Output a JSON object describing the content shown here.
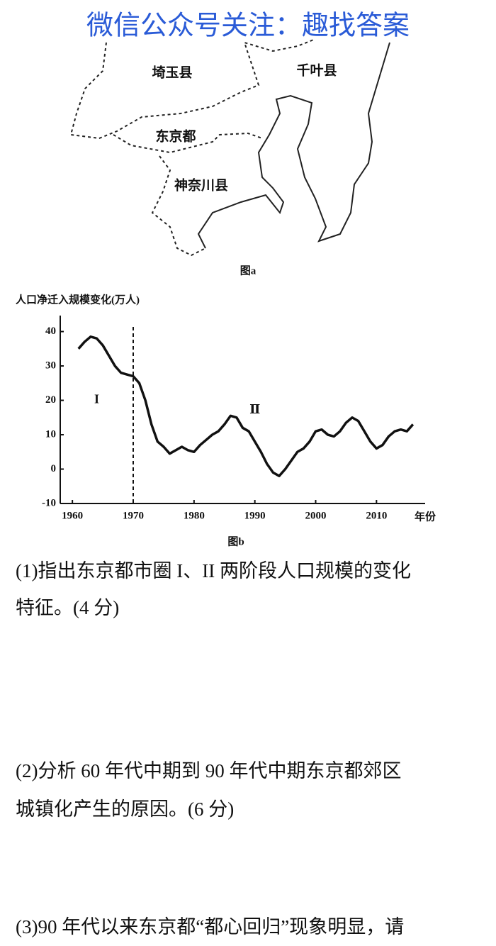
{
  "header": {
    "watermark": "微信公众号关注：趣找答案"
  },
  "map": {
    "labels": [
      "埼玉县",
      "千叶县",
      "东京都",
      "神奈川县"
    ],
    "caption": "图a"
  },
  "chart_data": {
    "type": "line",
    "title": "人口净迁入规模变化(万人)",
    "x_label": "年份",
    "caption": "图b",
    "annotations": [
      {
        "text": "I",
        "x": 1964,
        "y": 20
      },
      {
        "text": "Ⅱ",
        "x": 1990,
        "y": 17
      }
    ],
    "divider_x": 1970,
    "xlim": [
      1958,
      2018
    ],
    "ylim": [
      -10,
      43
    ],
    "xticks": [
      1960,
      1970,
      1980,
      1990,
      2000,
      2010
    ],
    "yticks": [
      -10,
      0,
      10,
      20,
      30,
      40
    ],
    "x": [
      1961,
      1962,
      1963,
      1964,
      1965,
      1966,
      1967,
      1968,
      1969,
      1970,
      1971,
      1972,
      1973,
      1974,
      1975,
      1976,
      1977,
      1978,
      1979,
      1980,
      1981,
      1982,
      1983,
      1984,
      1985,
      1986,
      1987,
      1988,
      1989,
      1990,
      1991,
      1992,
      1993,
      1994,
      1995,
      1996,
      1997,
      1998,
      1999,
      2000,
      2001,
      2002,
      2003,
      2004,
      2005,
      2006,
      2007,
      2008,
      2009,
      2010,
      2011,
      2012,
      2013,
      2014,
      2015,
      2016
    ],
    "series": [
      {
        "color": "#111111",
        "values": [
          35,
          37,
          38.5,
          38,
          36,
          33,
          30,
          28,
          27.5,
          27,
          25,
          20,
          13,
          8,
          6.5,
          4.5,
          5.5,
          6.5,
          5.5,
          5,
          7,
          8.5,
          10,
          11,
          13,
          15.5,
          15,
          12,
          11,
          8,
          5,
          1.5,
          -1,
          -2,
          0,
          2.5,
          5,
          6,
          8,
          11,
          11.5,
          10,
          9.5,
          11,
          13.5,
          15,
          14,
          11,
          8,
          6,
          7,
          9.5,
          11,
          11.5,
          11,
          13
        ]
      }
    ]
  },
  "questions": [
    {
      "lines": [
        "(1)指出东京都市圈 I、II 两阶段人口规模的变化",
        "特征。(4 分)"
      ]
    },
    {
      "lines": [
        "(2)分析 60 年代中期到 90 年代中期东京都郊区",
        "城镇化产生的原因。(6 分)"
      ]
    },
    {
      "lines": [
        "(3)90 年代以来东京都“都心回归”现象明显，请"
      ]
    }
  ]
}
